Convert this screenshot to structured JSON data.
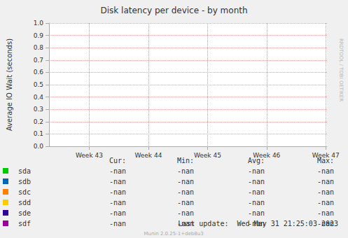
{
  "chart_data": {
    "type": "line",
    "title": "Disk latency per device - by month",
    "y_label": "Average IO Wait (seconds)",
    "x": [],
    "xlim": [
      42.32,
      47.02
    ],
    "xticks": [
      {
        "value": 43,
        "label": "Week 43"
      },
      {
        "value": 44,
        "label": "Week 44"
      },
      {
        "value": 45,
        "label": "Week 45"
      },
      {
        "value": 46,
        "label": "Week 46"
      },
      {
        "value": 47,
        "label": "Week 47"
      }
    ],
    "ylim": [
      0,
      1
    ],
    "yticks": [
      {
        "value": 0,
        "label": "0.0"
      },
      0.1,
      0.2,
      0.3,
      0.4,
      0.5,
      0.6,
      0.7,
      0.8,
      0.9,
      {
        "value": 1,
        "label": "1.0"
      }
    ],
    "grid": true,
    "stat_columns": [
      "Cur:",
      "Min:",
      "Avg:",
      "Max:"
    ],
    "series": [
      {
        "name": "sda",
        "color": "#00cc00",
        "values": [],
        "stats": [
          "-nan",
          "-nan",
          "-nan",
          "-nan"
        ]
      },
      {
        "name": "sdb",
        "color": "#0066b3",
        "values": [],
        "stats": [
          "-nan",
          "-nan",
          "-nan",
          "-nan"
        ]
      },
      {
        "name": "sdc",
        "color": "#ff8000",
        "values": [],
        "stats": [
          "-nan",
          "-nan",
          "-nan",
          "-nan"
        ]
      },
      {
        "name": "sdd",
        "color": "#ffcc00",
        "values": [],
        "stats": [
          "-nan",
          "-nan",
          "-nan",
          "-nan"
        ]
      },
      {
        "name": "sde",
        "color": "#330099",
        "values": [],
        "stats": [
          "-nan",
          "-nan",
          "-nan",
          "-nan"
        ]
      },
      {
        "name": "sdf",
        "color": "#990099",
        "values": [],
        "stats": [
          "-nan",
          "-nan",
          "-nan",
          "-nan"
        ]
      }
    ],
    "last_update": "Last update:  Wed May 31 21:25:03 2023",
    "footer": "Munin 2.0.25-1+deb8u3",
    "watermark": "RRDTOOL / TOBI OETIKER"
  }
}
